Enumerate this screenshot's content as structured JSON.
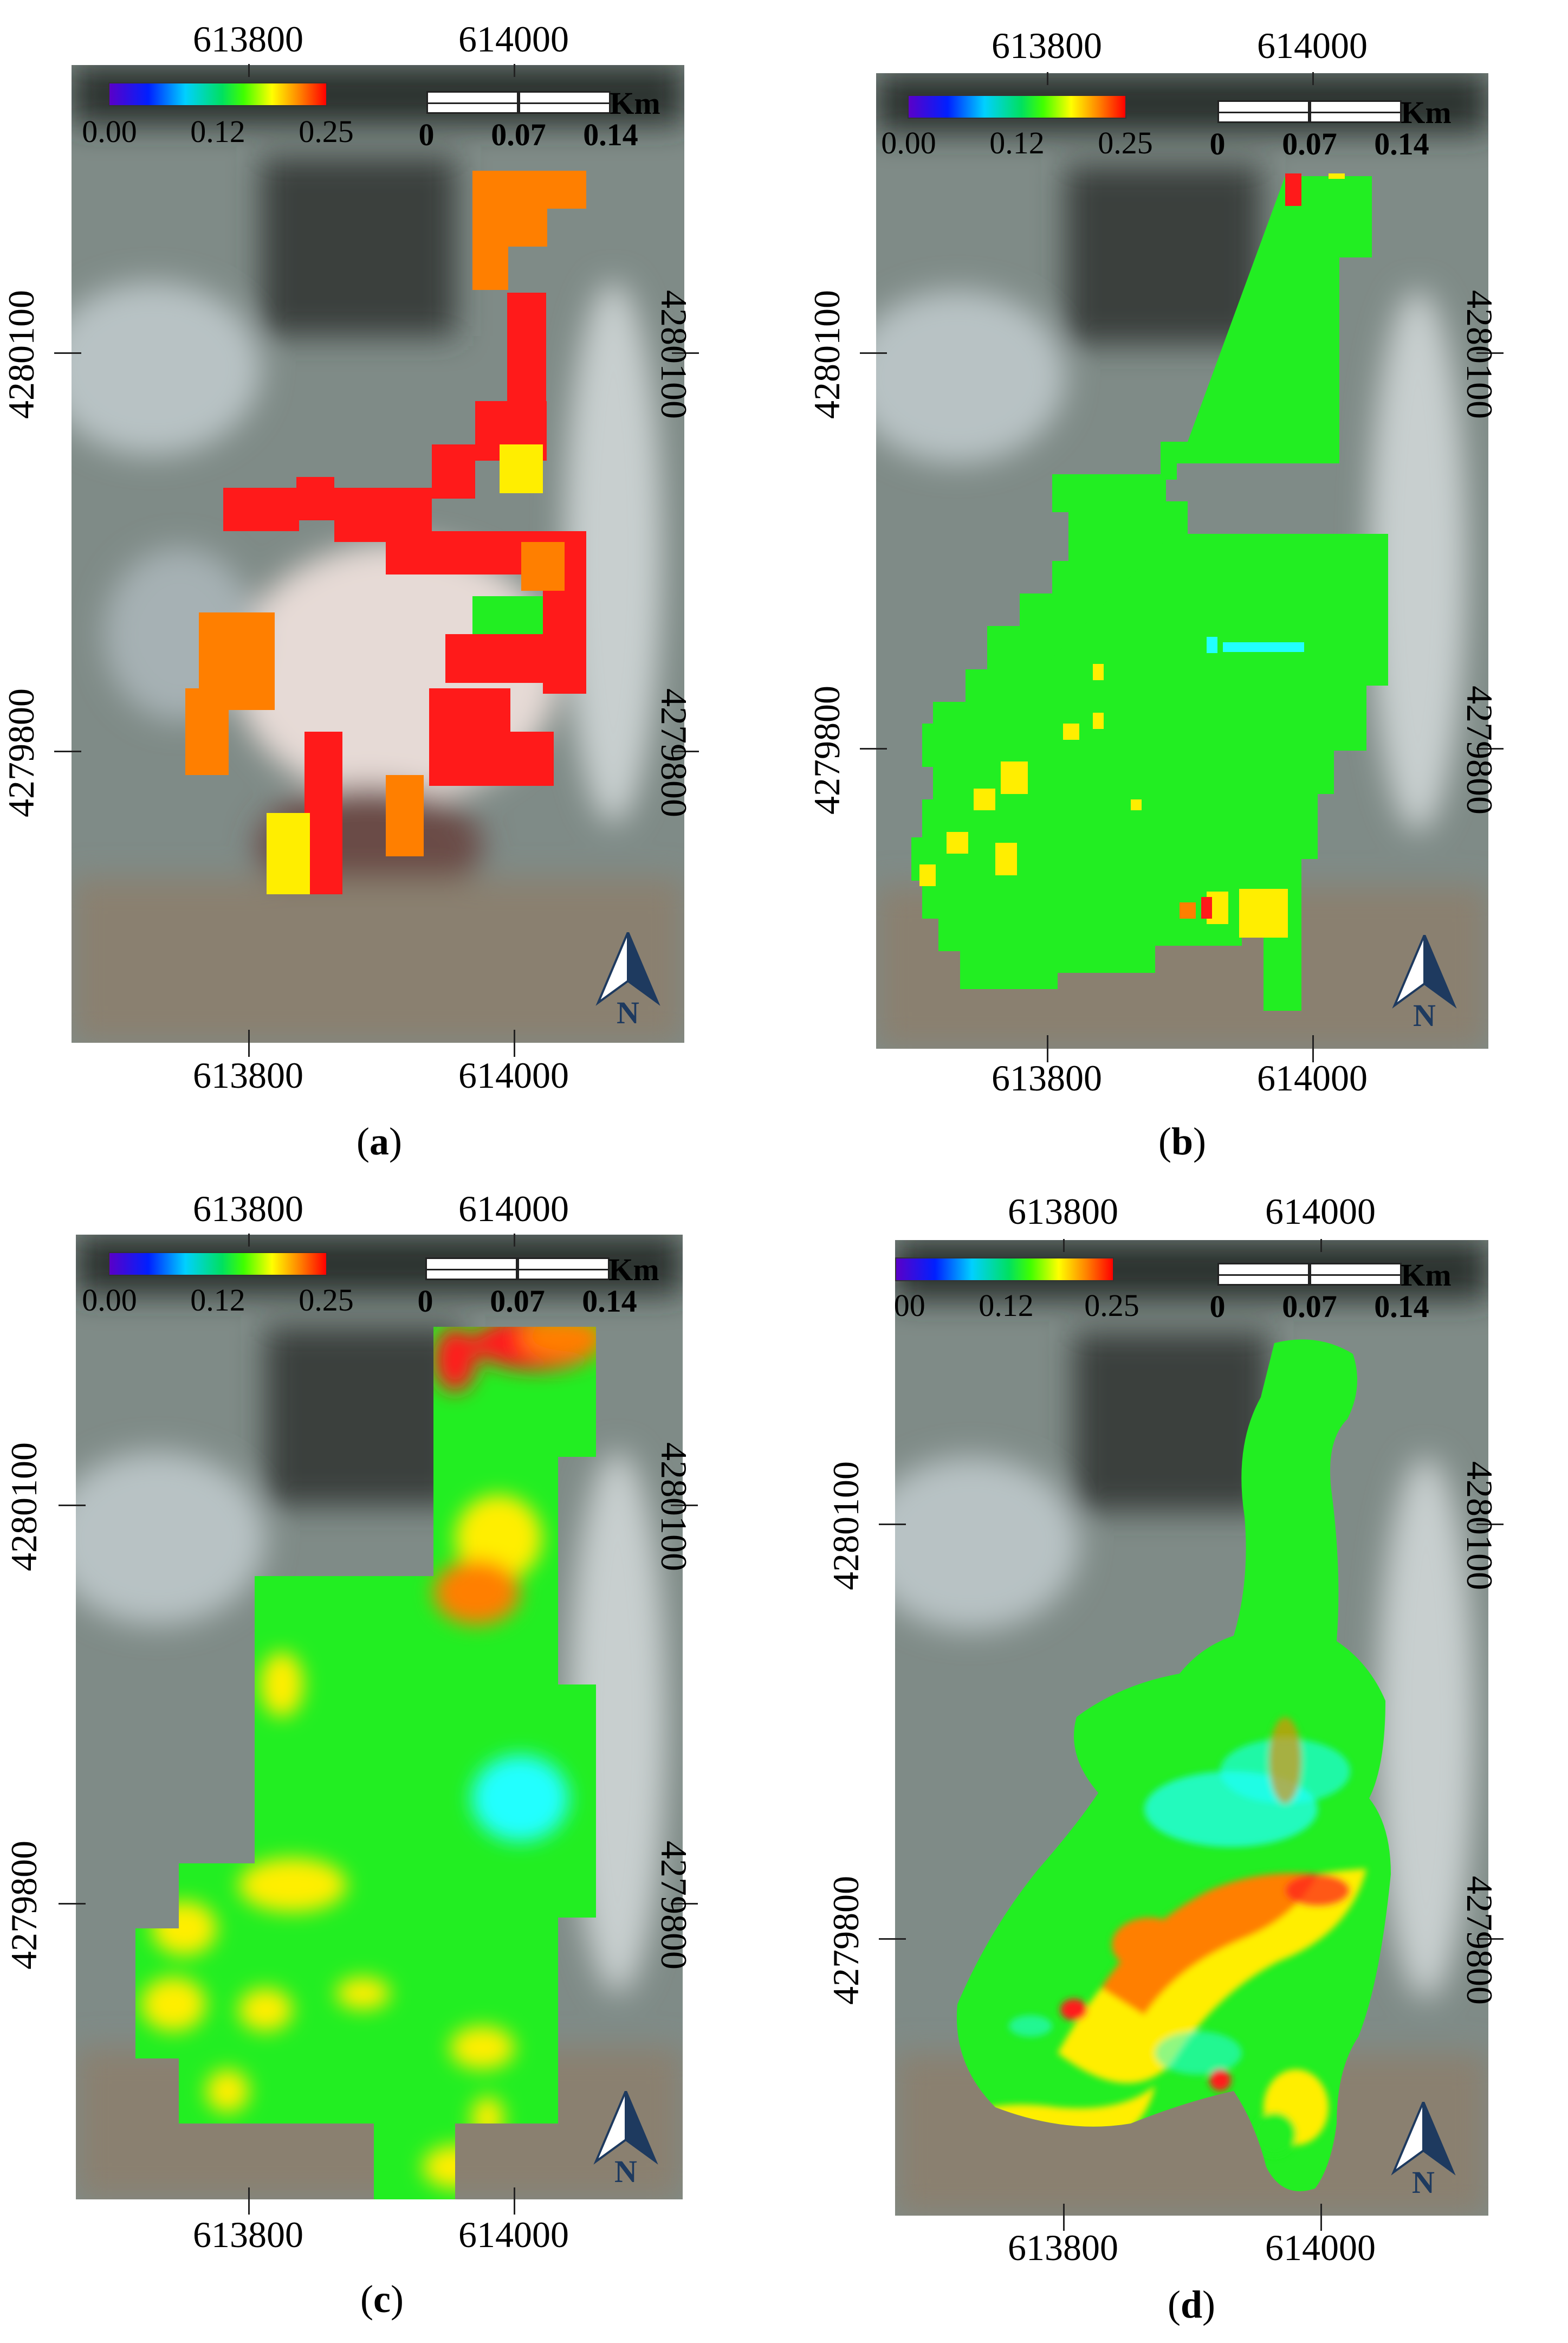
{
  "colorbar": {
    "min": "0.00",
    "mid": "0.12",
    "max": "0.25"
  },
  "scalebar": {
    "unit": "Km",
    "labels": [
      "0",
      "0.07",
      "0.14"
    ]
  },
  "north_label": "N",
  "coords": {
    "x_left": "613800",
    "x_right": "614000",
    "y_upper": "4280100",
    "y_lower": "4279800"
  },
  "panels": [
    {
      "id": "a",
      "caption_open": "(",
      "caption_letter": "a",
      "caption_close": ")"
    },
    {
      "id": "b",
      "caption_open": "(",
      "caption_letter": "b",
      "caption_close": ")"
    },
    {
      "id": "c",
      "caption_open": "(",
      "caption_letter": "c",
      "caption_close": ")"
    },
    {
      "id": "d",
      "caption_open": "(",
      "caption_letter": "d",
      "caption_close": ")"
    }
  ],
  "colors": {
    "red": "#ff1a1a",
    "orange": "#ff7f00",
    "yellow": "#ffee00",
    "green": "#22ee22",
    "cyan": "#22ffff",
    "satellite_base": "#7d8a86"
  }
}
